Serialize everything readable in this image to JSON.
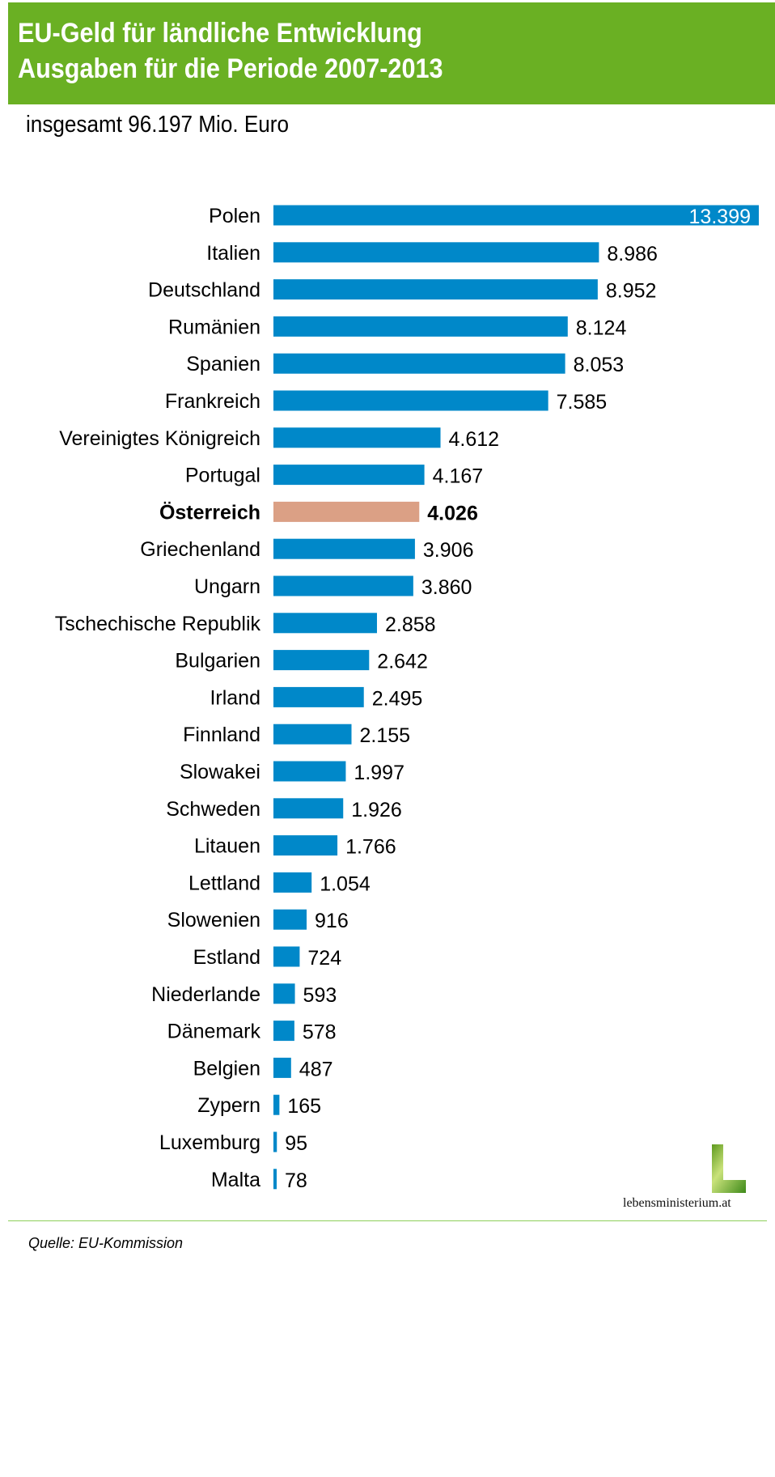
{
  "header": {
    "title_line1": "EU-Geld für ländliche Entwicklung",
    "title_line2": "Ausgaben für die Periode 2007-2013"
  },
  "subtitle": "insgesamt 96.197 Mio. Euro",
  "source": "Quelle: EU-Kommission",
  "logo_text": "lebensministerium.at",
  "colors": {
    "header": "#6ab023",
    "bar": "#0088c9",
    "highlight": "#dba085"
  },
  "chart_data": {
    "type": "bar",
    "orientation": "horizontal",
    "title": "EU-Geld für ländliche Entwicklung – Ausgaben für die Periode 2007-2013",
    "unit": "Mio. Euro",
    "highlight": "Österreich",
    "categories": [
      "Polen",
      "Italien",
      "Deutschland",
      "Rumänien",
      "Spanien",
      "Frankreich",
      "Vereinigtes Königreich",
      "Portugal",
      "Österreich",
      "Griechenland",
      "Ungarn",
      "Tschechische  Republik",
      "Bulgarien",
      "Irland",
      "Finnland",
      "Slowakei",
      "Schweden",
      "Litauen",
      "Lettland",
      "Slowenien",
      "Estland",
      "Niederlande",
      "Dänemark",
      "Belgien",
      "Zypern",
      "Luxemburg",
      "Malta"
    ],
    "values": [
      13399,
      8986,
      8952,
      8124,
      8053,
      7585,
      4612,
      4167,
      4026,
      3906,
      3860,
      2858,
      2642,
      2495,
      2155,
      1997,
      1926,
      1766,
      1054,
      916,
      724,
      593,
      578,
      487,
      165,
      95,
      78
    ],
    "labels": [
      "13.399",
      "8.986",
      "8.952",
      "8.124",
      "8.053",
      "7.585",
      "4.612",
      "4.167",
      "4.026",
      "3.906",
      "3.860",
      "2.858",
      "2.642",
      "2.495",
      "2.155",
      "1.997",
      "1.926",
      "1.766",
      "1.054",
      "916",
      "724",
      "593",
      "578",
      "487",
      "165",
      "95",
      "78"
    ],
    "xlim": [
      0,
      13399
    ]
  }
}
